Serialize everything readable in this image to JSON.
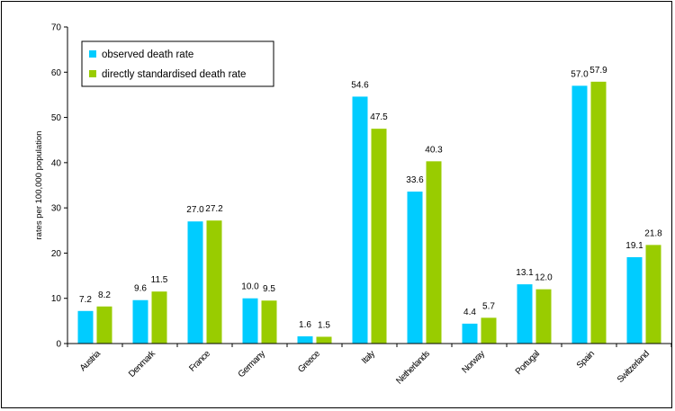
{
  "chart_data": {
    "type": "bar",
    "title": "",
    "xlabel": "",
    "ylabel": "rates per 100,000 population",
    "ylim": [
      0,
      70
    ],
    "yticks": [
      0,
      10,
      20,
      30,
      40,
      50,
      60,
      70
    ],
    "grid": false,
    "legend_position": "top-left",
    "categories": [
      "Austria",
      "Denmark",
      "France",
      "Germany",
      "Greece",
      "Italy",
      "Netherlands",
      "Norway",
      "Portugal",
      "Spain",
      "Switzerland"
    ],
    "series": [
      {
        "name": "observed death rate",
        "color": "#00ccff",
        "values": [
          7.2,
          9.6,
          27.0,
          10.0,
          1.6,
          54.6,
          33.6,
          4.4,
          13.1,
          57.0,
          19.1
        ],
        "labels": [
          "7.2",
          "9.6",
          "27.0",
          "10.0",
          "1.6",
          "54.6",
          "33.6",
          "4.4",
          "13.1",
          "57.0",
          "19.1"
        ]
      },
      {
        "name": "directly standardised death rate",
        "color": "#99cc00",
        "values": [
          8.2,
          11.5,
          27.2,
          9.5,
          1.5,
          47.5,
          40.3,
          5.7,
          12.0,
          57.9,
          21.8
        ],
        "labels": [
          "8.2",
          "11.5",
          "27.2",
          "9.5",
          "1.5",
          "47.5",
          "40.3",
          "5.7",
          "12.0",
          "57.9",
          "21.8"
        ]
      }
    ]
  }
}
